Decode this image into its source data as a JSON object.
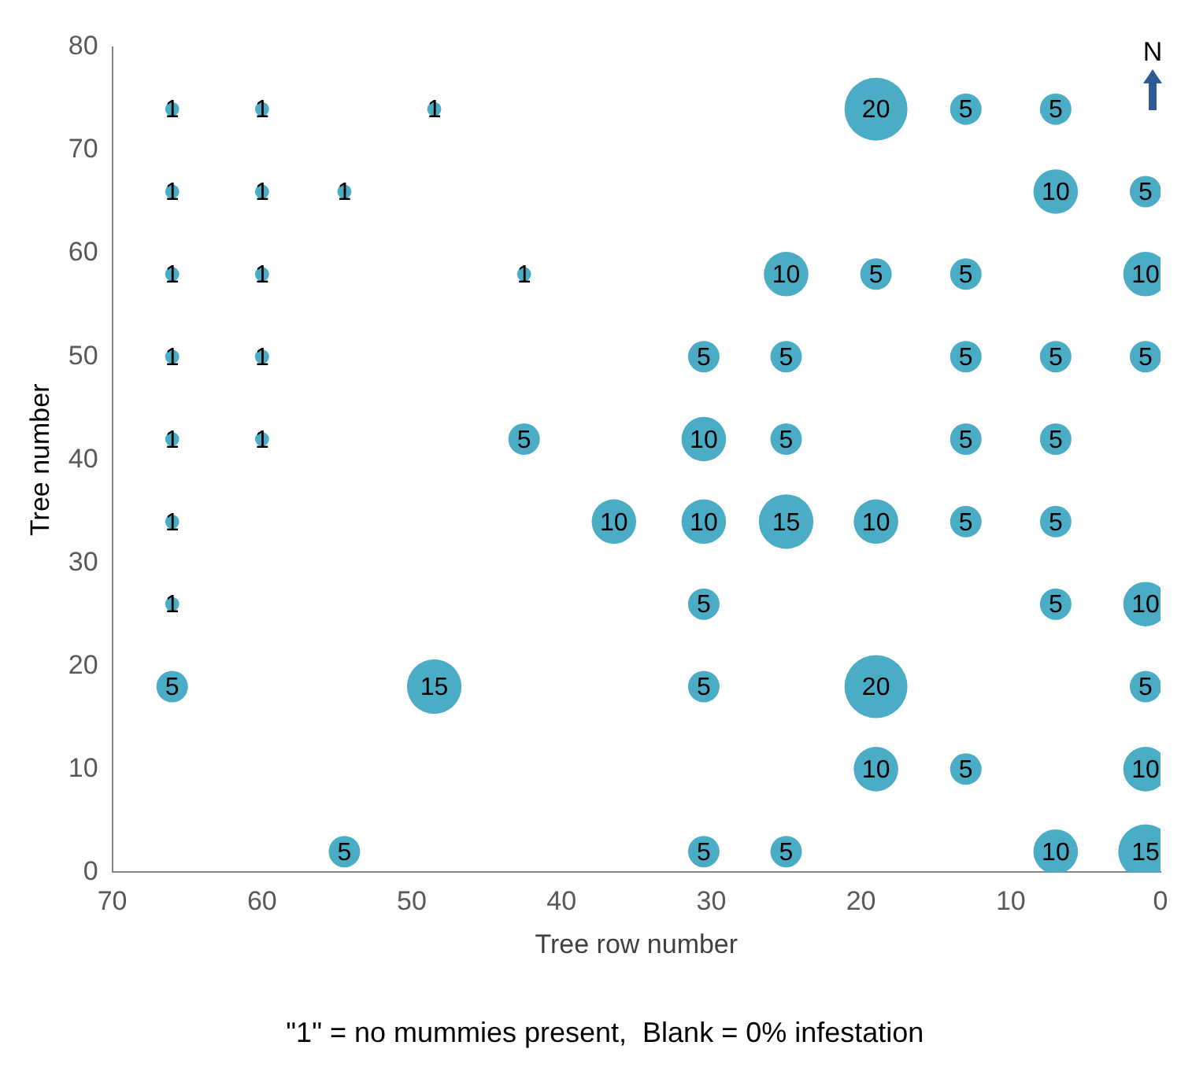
{
  "chart_data": {
    "type": "bubble",
    "xlabel": "Tree row number",
    "ylabel": "Tree number",
    "annotations": [
      "\"1\" = no mummies present,  Blank = 0% infestation",
      "N"
    ],
    "xlim": [
      70,
      0
    ],
    "xticks": [
      70,
      60,
      50,
      40,
      30,
      20,
      10,
      0
    ],
    "ylim": [
      0,
      80
    ],
    "yticks": [
      0,
      10,
      20,
      30,
      40,
      50,
      60,
      70,
      80
    ],
    "grid": false,
    "legend": false,
    "marker": "circle",
    "series": [
      {
        "color": "#4bacc6",
        "x": [
          66,
          60,
          48.5,
          19,
          13,
          7,
          66,
          60,
          54.5,
          7,
          1,
          66,
          60,
          42.5,
          25,
          19,
          13,
          1,
          66,
          60,
          30.5,
          25,
          13,
          7,
          1,
          66,
          60,
          42.5,
          30.5,
          25,
          13,
          7,
          66,
          36.5,
          30.5,
          25,
          19,
          13,
          7,
          66,
          30.5,
          7,
          1,
          66,
          48.5,
          30.5,
          19,
          1,
          19,
          13,
          1,
          54.5,
          30.5,
          25,
          7,
          1
        ],
        "values": [
          74,
          74,
          74,
          74,
          74,
          74,
          66,
          66,
          66,
          66,
          66,
          58,
          58,
          58,
          58,
          58,
          58,
          58,
          50,
          50,
          50,
          50,
          50,
          50,
          50,
          42,
          42,
          42,
          42,
          42,
          42,
          42,
          34,
          34,
          34,
          34,
          34,
          34,
          34,
          26,
          26,
          26,
          26,
          18,
          18,
          18,
          18,
          18,
          10,
          10,
          10,
          2,
          2,
          2,
          2,
          2
        ],
        "sizes": [
          1,
          1,
          1,
          20,
          5,
          5,
          1,
          1,
          1,
          10,
          5,
          1,
          1,
          1,
          10,
          5,
          5,
          10,
          1,
          1,
          5,
          5,
          5,
          5,
          5,
          1,
          1,
          5,
          10,
          5,
          5,
          5,
          1,
          10,
          10,
          15,
          10,
          5,
          5,
          1,
          5,
          5,
          10,
          5,
          15,
          5,
          20,
          5,
          10,
          5,
          10,
          5,
          5,
          5,
          10,
          15
        ],
        "value_labels": [
          "1",
          "1",
          "1",
          "20",
          "5",
          "5",
          "1",
          "1",
          "1",
          "10",
          "5",
          "1",
          "1",
          "1",
          "10",
          "5",
          "5",
          "10",
          "1",
          "1",
          "5",
          "5",
          "5",
          "5",
          "5",
          "1",
          "1",
          "5",
          "10",
          "5",
          "5",
          "5",
          "1",
          "10",
          "10",
          "15",
          "10",
          "5",
          "5",
          "1",
          "5",
          "5",
          "10",
          "5",
          "15",
          "5",
          "20",
          "5",
          "10",
          "5",
          "10",
          "5",
          "5",
          "5",
          "10",
          "15"
        ]
      }
    ]
  }
}
